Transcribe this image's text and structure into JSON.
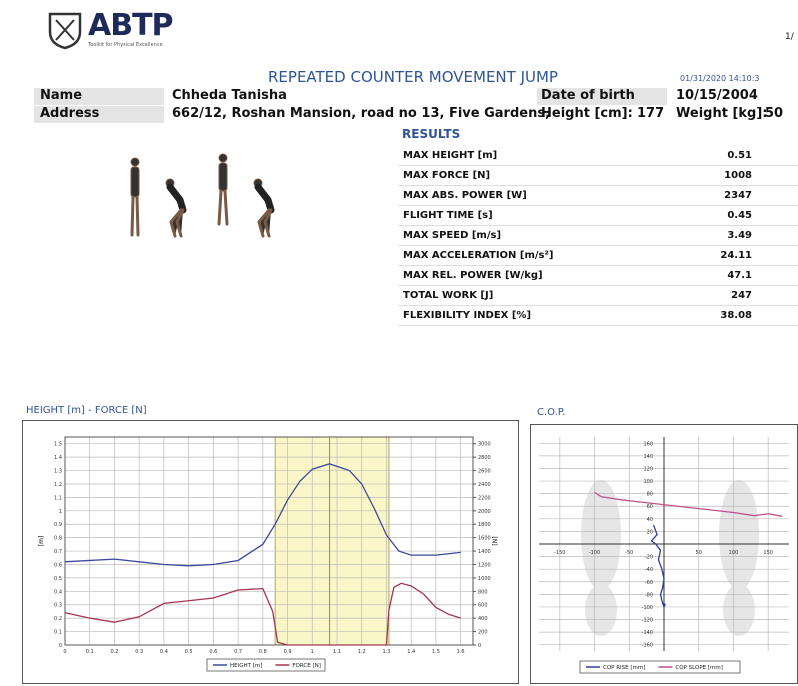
{
  "header": {
    "logo": "ABTP",
    "tagline": "Toolkit for Physical Excellence",
    "page": "1/",
    "title": "REPEATED COUNTER MOVEMENT JUMP",
    "timestamp": "01/31/2020 14:10:3"
  },
  "patient": {
    "name_label": "Name",
    "name": "Chheda Tanisha",
    "dob_label": "Date of birth",
    "dob": "10/15/2004",
    "address_label": "Address",
    "address": "662/12, Roshan Mansion, road no 13, Five Gardens,",
    "height_label": "Height [cm]:",
    "height": 177,
    "weight_label": "Weight [kg]:",
    "weight": 50
  },
  "results": {
    "title": "RESULTS",
    "rows": [
      [
        "MAX HEIGHT [m]",
        0.51
      ],
      [
        "MAX FORCE [N]",
        1008
      ],
      [
        "MAX ABS. POWER [W]",
        2347
      ],
      [
        "FLIGHT TIME [s]",
        0.45
      ],
      [
        "MAX SPEED [m/s]",
        3.49
      ],
      [
        "MAX ACCELERATION [m/s²]",
        24.11
      ],
      [
        "MAX REL. POWER [W/kg]",
        47.1
      ],
      [
        "TOTAL WORK [J]",
        247
      ],
      [
        "FLEXIBILITY INDEX [%]",
        38.08
      ]
    ]
  },
  "height_force_chart": {
    "type": "line",
    "title": "HEIGHT [m] - FORCE [N]",
    "y_label": "[m]",
    "y2_label": "[N]",
    "xlim": [
      0,
      1.65
    ],
    "xticks": [
      0,
      0.1,
      0.2,
      0.3,
      0.4,
      0.5,
      0.6,
      0.7,
      0.8,
      0.9,
      1,
      1.1,
      1.2,
      1.3,
      1.4,
      1.5,
      1.6
    ],
    "ylim": [
      0,
      1.55
    ],
    "yticks": [
      0,
      0.1,
      0.2,
      0.3,
      0.4,
      0.5,
      0.6,
      0.7,
      0.8,
      0.9,
      1,
      1.1,
      1.2,
      1.3,
      1.4,
      1.5
    ],
    "y2lim": [
      0,
      3100
    ],
    "y2ticks": [
      0,
      200,
      400,
      600,
      800,
      1000,
      1200,
      1400,
      1600,
      1800,
      2000,
      2200,
      2400,
      2600,
      2800,
      3000
    ],
    "highlight": [
      0.85,
      1.31
    ],
    "marker_x": 1.07,
    "series": [
      {
        "name": "HEIGHT [m]",
        "color": "#3b4a9a",
        "x": [
          0,
          0.1,
          0.2,
          0.3,
          0.4,
          0.5,
          0.6,
          0.7,
          0.8,
          0.85,
          0.9,
          0.95,
          1,
          1.07,
          1.15,
          1.2,
          1.25,
          1.3,
          1.35,
          1.4,
          1.5,
          1.6
        ],
        "values": [
          0.62,
          0.63,
          0.64,
          0.62,
          0.6,
          0.59,
          0.6,
          0.63,
          0.75,
          0.9,
          1.08,
          1.22,
          1.31,
          1.35,
          1.3,
          1.2,
          1.02,
          0.82,
          0.7,
          0.67,
          0.67,
          0.69
        ]
      },
      {
        "name": "FORCE [N]",
        "color": "#a5354d",
        "axis": "y2",
        "x": [
          0,
          0.1,
          0.2,
          0.3,
          0.4,
          0.5,
          0.6,
          0.7,
          0.8,
          0.84,
          0.86,
          0.9,
          1,
          1.1,
          1.2,
          1.3,
          1.31,
          1.33,
          1.36,
          1.4,
          1.45,
          1.5,
          1.55,
          1.6
        ],
        "values": [
          480,
          400,
          340,
          420,
          620,
          660,
          700,
          820,
          840,
          500,
          40,
          0,
          0,
          0,
          0,
          0,
          520,
          860,
          920,
          880,
          760,
          560,
          460,
          400
        ]
      }
    ]
  },
  "cop_chart": {
    "type": "line",
    "title": "C.O.P.",
    "xlim": [
      -180,
      180
    ],
    "xticks": [
      -150,
      -100,
      -50,
      50,
      100,
      150
    ],
    "ylim": [
      -170,
      170
    ],
    "yticks": [
      -160,
      -140,
      -120,
      -100,
      -80,
      -60,
      -40,
      -20,
      20,
      40,
      60,
      80,
      100,
      120,
      140,
      160
    ],
    "series": [
      {
        "name": "COP RISE [mm]",
        "color": "#2c3e9a",
        "x": [
          -15,
          -10,
          -18,
          -12,
          -5,
          -8,
          -3,
          0,
          -2,
          -5,
          -3,
          0,
          2
        ],
        "values": [
          30,
          15,
          5,
          0,
          -10,
          -25,
          -40,
          -55,
          -70,
          -80,
          -90,
          -100,
          -95
        ]
      },
      {
        "name": "COP SLOPE [mm]",
        "color": "#c0508a",
        "x": [
          -100,
          -90,
          -60,
          -20,
          20,
          60,
          100,
          130,
          150,
          170
        ],
        "values": [
          82,
          75,
          70,
          65,
          60,
          55,
          50,
          45,
          48,
          44
        ]
      }
    ]
  }
}
